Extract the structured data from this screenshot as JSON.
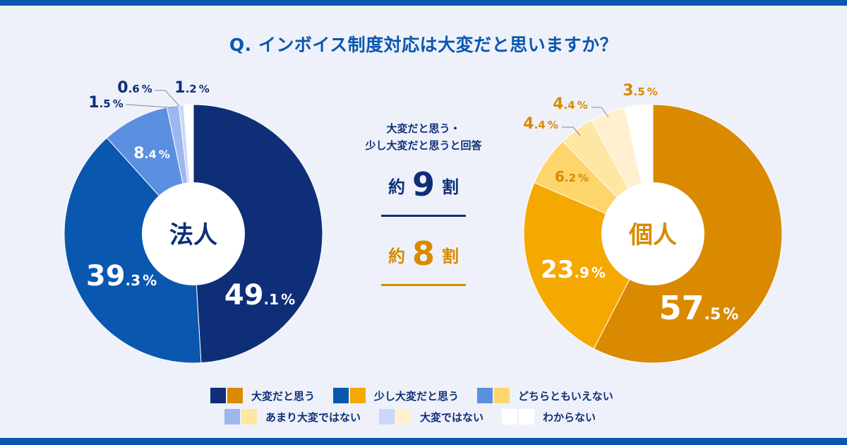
{
  "title": "Q. インボイス制度対応は大変だと思いますか？",
  "center": {
    "note_line1": "大変だと思う・",
    "note_line2": "少し大変だと思うと回答",
    "corp_ratio": {
      "prefix": "約",
      "number": "9",
      "suffix": "割"
    },
    "indiv_ratio": {
      "prefix": "約",
      "number": "8",
      "suffix": "割"
    }
  },
  "legend": [
    {
      "label": "大変だと思う",
      "corp_color": "#0e2f78",
      "indiv_color": "#d98a00"
    },
    {
      "label": "少し大変だと思う",
      "corp_color": "#0a57b0",
      "indiv_color": "#f5a800"
    },
    {
      "label": "どちらともいえない",
      "corp_color": "#5b8fe0",
      "indiv_color": "#fdd56a"
    },
    {
      "label": "あまり大変ではない",
      "corp_color": "#9db8ee",
      "indiv_color": "#fde7a3"
    },
    {
      "label": "大変ではない",
      "corp_color": "#c9d8f7",
      "indiv_color": "#fff1cf"
    },
    {
      "label": "わからない",
      "corp_color": "#ffffff",
      "indiv_color": "#ffffff"
    }
  ],
  "chart_data": [
    {
      "type": "pie",
      "title": "法人",
      "categories": [
        "大変だと思う",
        "少し大変だと思う",
        "どちらともいえない",
        "あまり大変ではない",
        "大変ではない",
        "わからない"
      ],
      "values": [
        49.1,
        39.3,
        8.4,
        1.5,
        0.6,
        1.2
      ],
      "labels": [
        {
          "int": "49",
          "dec": ".1",
          "unit": "%"
        },
        {
          "int": "39",
          "dec": ".3",
          "unit": "%"
        },
        {
          "int": "8",
          "dec": ".4",
          "unit": "%"
        },
        {
          "int": "1",
          "dec": ".5",
          "unit": "%"
        },
        {
          "int": "0",
          "dec": ".6",
          "unit": "%"
        },
        {
          "int": "1",
          "dec": ".2",
          "unit": "%"
        }
      ],
      "colors": [
        "#0e2f78",
        "#0a57b0",
        "#5b8fe0",
        "#9db8ee",
        "#c9d8f7",
        "#ffffff"
      ]
    },
    {
      "type": "pie",
      "title": "個人",
      "categories": [
        "大変だと思う",
        "少し大変だと思う",
        "どちらともいえない",
        "あまり大変ではない",
        "大変ではない",
        "わからない"
      ],
      "values": [
        57.5,
        23.9,
        6.2,
        4.4,
        4.4,
        3.5
      ],
      "labels": [
        {
          "int": "57",
          "dec": ".5",
          "unit": "%"
        },
        {
          "int": "23",
          "dec": ".9",
          "unit": "%"
        },
        {
          "int": "6",
          "dec": ".2",
          "unit": "%"
        },
        {
          "int": "4",
          "dec": ".4",
          "unit": "%"
        },
        {
          "int": "4",
          "dec": ".4",
          "unit": "%"
        },
        {
          "int": "3",
          "dec": ".5",
          "unit": "%"
        }
      ],
      "colors": [
        "#d98a00",
        "#f5a800",
        "#fdd56a",
        "#fde7a3",
        "#fff1cf",
        "#ffffff"
      ]
    }
  ]
}
